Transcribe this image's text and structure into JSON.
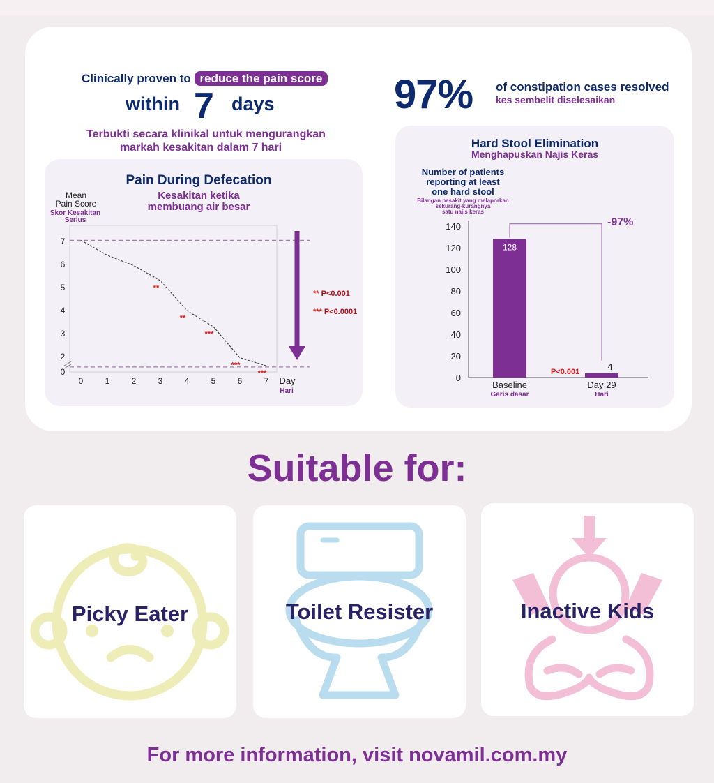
{
  "headline": {
    "prefix": "Clinically proven to",
    "highlight": "reduce the pain score",
    "within": "within",
    "num": "7",
    "days": "days",
    "malay_line1": "Terbukti secara klinikal untuk mengurangkan",
    "malay_line2": "markah kesakitan dalam 7 hari"
  },
  "stat": {
    "value": "97%",
    "text_en": "of constipation cases resolved",
    "text_ms": "kes sembelit diselesaikan"
  },
  "chart_data": [
    {
      "type": "line",
      "title": "Pain During Defecation",
      "subtitle_line1": "Kesakitan ketika",
      "subtitle_line2": "membuang air besar",
      "ylabel_line1": "Mean",
      "ylabel_line2": "Pain Score",
      "ylabel_ms_line1": "Skor Kesakitan",
      "ylabel_ms_line2": "Serius",
      "xlabel": "Day",
      "xlabel_ms": "Hari",
      "x": [
        0,
        1,
        2,
        3,
        4,
        5,
        6,
        7
      ],
      "xticks": [
        "0",
        "1",
        "2",
        "3",
        "4",
        "5",
        "6",
        "7"
      ],
      "yticks": [
        "0",
        "2",
        "3",
        "4",
        "5",
        "6",
        "7"
      ],
      "series": [
        {
          "name": "",
          "values": [
            7.05,
            6.4,
            5.95,
            5.3,
            4.0,
            3.3,
            1.95,
            1.6
          ]
        }
      ],
      "significance": [
        "",
        "",
        "",
        "**",
        "**",
        "***",
        "***",
        "***"
      ],
      "ref_lines": [
        7.05,
        1.55
      ],
      "legend": [
        {
          "marker": "**",
          "text": "P<0.001"
        },
        {
          "marker": "***",
          "text": "P<0.0001"
        }
      ]
    },
    {
      "type": "bar",
      "title": "Hard Stool Elimination",
      "subtitle": "Menghapuskan Najis Keras",
      "ylabel_line1": "Number of patients",
      "ylabel_line2": "reporting at least",
      "ylabel_line3": "one hard stool",
      "ylabel_ms_line1": "Bilangan pesakit yang melaporkan",
      "ylabel_ms_line2": "sekurang-kurangnya",
      "ylabel_ms_line3": "satu najis keras",
      "ylim": [
        0,
        140
      ],
      "yticks": [
        "0",
        "20",
        "40",
        "60",
        "80",
        "100",
        "120",
        "140"
      ],
      "categories": [
        "Baseline",
        "Day 29"
      ],
      "categories_ms": [
        "Garis dasar",
        "Hari"
      ],
      "values": [
        128,
        4
      ],
      "value_labels": [
        "128",
        "4"
      ],
      "change_label": "-97%",
      "p_label": "P<0.001",
      "colors": {
        "bar": "#7d2f93"
      }
    }
  ],
  "suitable": {
    "title": "Suitable for:",
    "items": [
      {
        "label": "Picky Eater",
        "icon": "baby-face-icon"
      },
      {
        "label": "Toilet Resister",
        "icon": "toilet-icon"
      },
      {
        "label": "Inactive Kids",
        "icon": "meditating-child-icon"
      }
    ]
  },
  "footer": {
    "text": "For more information, visit novamil.com.my"
  },
  "colors": {
    "navy": "#0e2a6e",
    "purple": "#7d2f93",
    "red": "#e01818",
    "yellow": "#efedb7",
    "blue": "#b9dcef",
    "pink": "#f3bfd6"
  }
}
